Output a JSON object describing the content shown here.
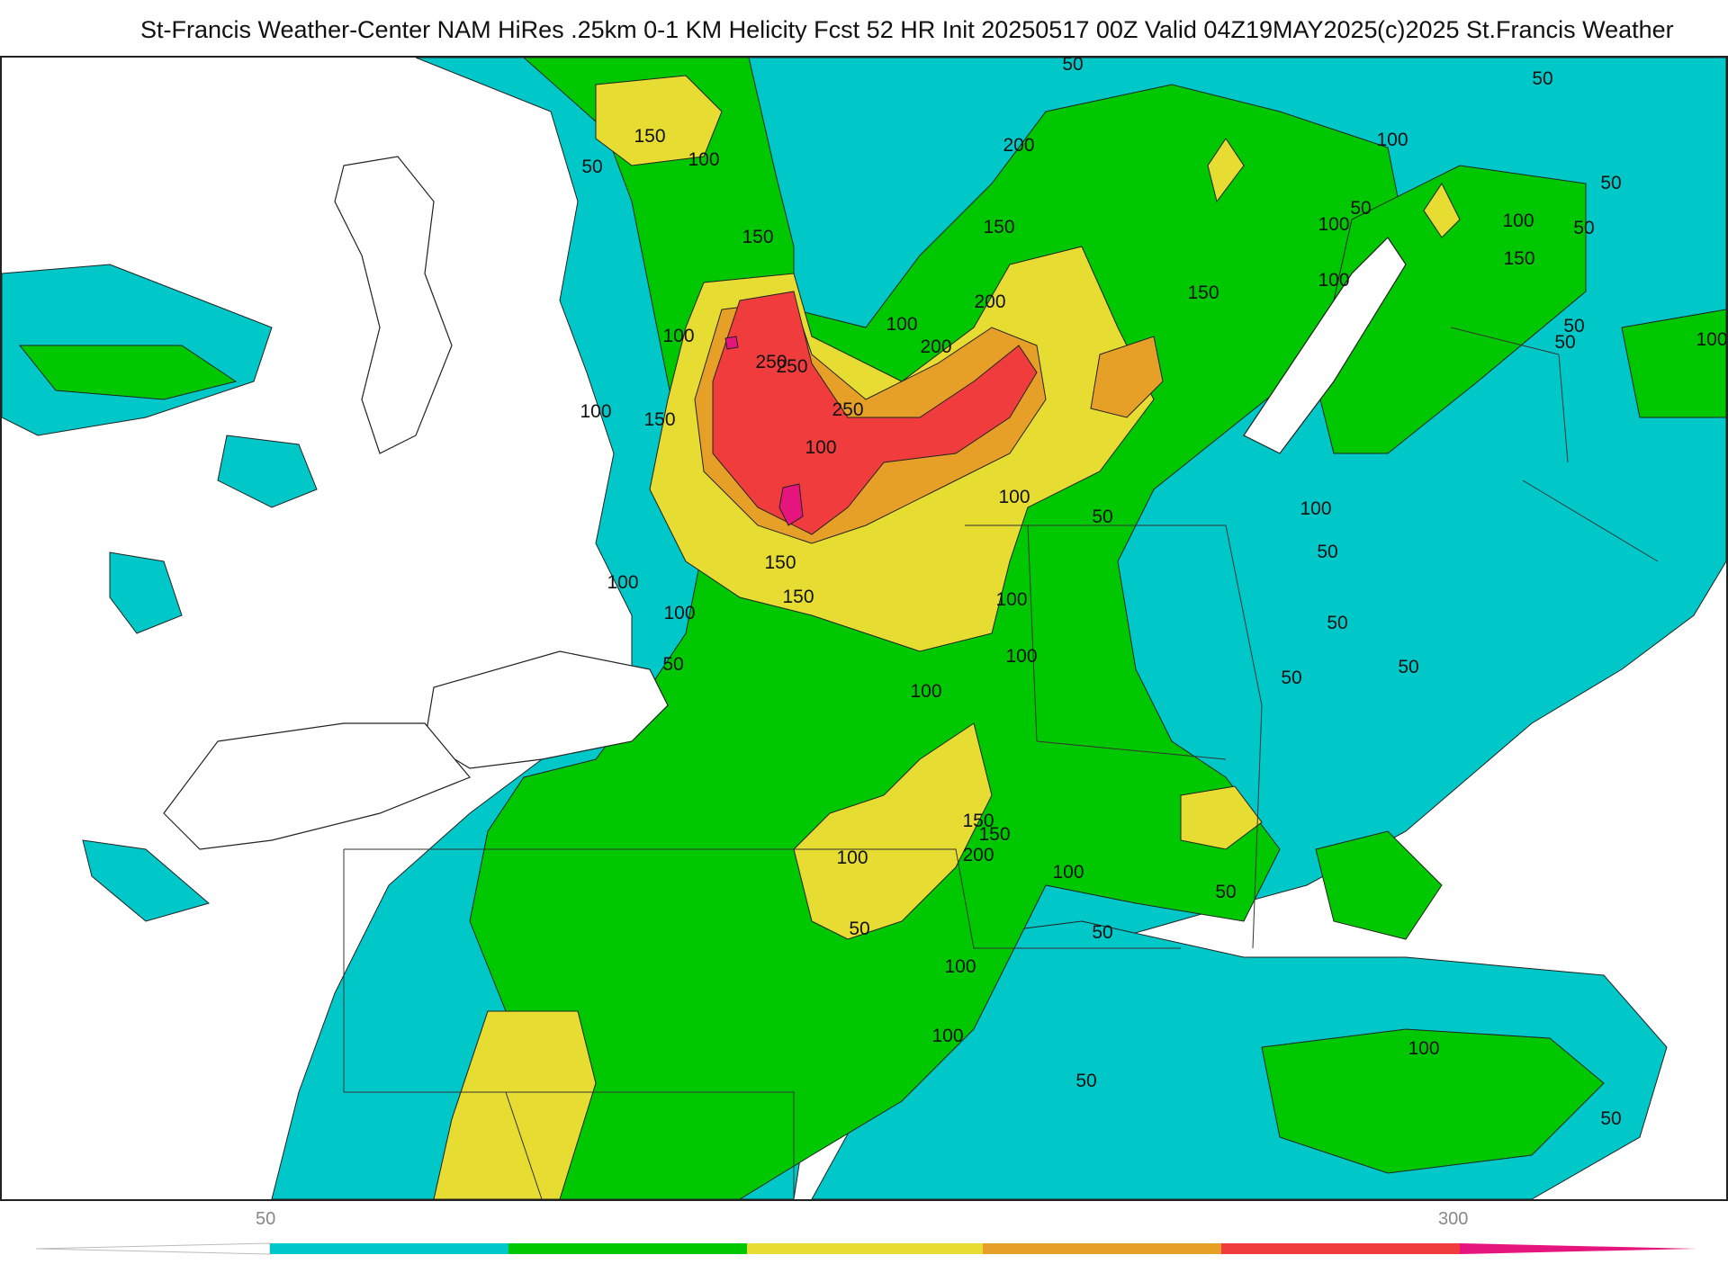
{
  "header": {
    "title": "St-Francis Weather-Center NAM HiRes .25km 0-1 KM Helicity Fcst 52 HR Init 20250517 00Z  Valid 04Z19MAY2025",
    "copyright": "(c)2025 St.Francis Weather"
  },
  "legend": {
    "tick_low": "50",
    "tick_high": "300",
    "colors": [
      "#ffffff",
      "#00c8c8",
      "#00c800",
      "#e6dc32",
      "#e6a028",
      "#f03c3c",
      "#e6147d"
    ]
  },
  "contour_labels": [
    {
      "text": "50"
    },
    {
      "text": "100"
    },
    {
      "text": "150"
    },
    {
      "text": "200"
    },
    {
      "text": "250"
    },
    {
      "text": "50"
    },
    {
      "text": "100"
    },
    {
      "text": "50"
    },
    {
      "text": "150"
    },
    {
      "text": "100"
    },
    {
      "text": "50"
    },
    {
      "text": "50"
    },
    {
      "text": "150"
    },
    {
      "text": "200"
    },
    {
      "text": "100"
    },
    {
      "text": "100"
    },
    {
      "text": "50"
    },
    {
      "text": "150"
    },
    {
      "text": "250"
    },
    {
      "text": "250"
    },
    {
      "text": "200"
    },
    {
      "text": "100"
    },
    {
      "text": "50"
    },
    {
      "text": "150"
    },
    {
      "text": "100"
    },
    {
      "text": "50"
    },
    {
      "text": "100"
    },
    {
      "text": "100"
    },
    {
      "text": "150"
    },
    {
      "text": "100"
    },
    {
      "text": "150"
    },
    {
      "text": "100"
    },
    {
      "text": "50"
    },
    {
      "text": "100"
    },
    {
      "text": "50"
    },
    {
      "text": "150"
    },
    {
      "text": "100"
    },
    {
      "text": "100"
    },
    {
      "text": "50"
    },
    {
      "text": "100"
    },
    {
      "text": "50"
    },
    {
      "text": "100"
    },
    {
      "text": "50"
    },
    {
      "text": "100"
    },
    {
      "text": "50"
    },
    {
      "text": "150"
    },
    {
      "text": "100"
    },
    {
      "text": "50"
    },
    {
      "text": "100"
    },
    {
      "text": "50"
    },
    {
      "text": "200"
    },
    {
      "text": "150"
    },
    {
      "text": "100"
    },
    {
      "text": "50"
    },
    {
      "text": "100"
    },
    {
      "text": "50"
    },
    {
      "text": "100"
    },
    {
      "text": "50"
    }
  ]
}
